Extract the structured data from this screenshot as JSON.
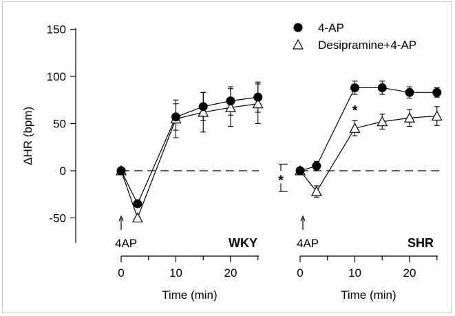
{
  "chart_data": {
    "type": "scatter",
    "ylabel": "ΔHR (bpm)",
    "ylim": [
      -75,
      150
    ],
    "yticks": [
      -50,
      0,
      50,
      100,
      150
    ],
    "xticks": [
      0,
      10,
      20
    ],
    "legend": {
      "placement": "top-right",
      "entries": [
        "4-AP",
        "Desipramine+4-AP"
      ]
    },
    "panels": [
      {
        "name": "WKY",
        "xlabel": "Time (min)",
        "arrow_label": "4AP",
        "series": [
          {
            "name": "4-AP",
            "marker": "filled-circle",
            "x": [
              0,
              3,
              10,
              15,
              20,
              25
            ],
            "y": [
              0,
              -35,
              57,
              68,
              74,
              78
            ],
            "err": [
              0,
              0,
              14,
              15,
              15,
              16
            ],
            "star": [
              false,
              true,
              false,
              false,
              false,
              true
            ]
          },
          {
            "name": "Desipramine+4-AP",
            "marker": "open-triangle",
            "x": [
              0,
              3,
              10,
              15,
              20,
              25
            ],
            "y": [
              0,
              -50,
              55,
              62,
              67,
              71
            ],
            "err": [
              0,
              0,
              20,
              21,
              20,
              21
            ],
            "star": [
              false,
              false,
              false,
              false,
              false,
              false
            ]
          }
        ]
      },
      {
        "name": "SHR",
        "xlabel": "Time (min)",
        "arrow_label": "4AP",
        "series": [
          {
            "name": "4-AP",
            "marker": "filled-circle",
            "x": [
              0,
              3,
              10,
              15,
              20,
              25
            ],
            "y": [
              0,
              5,
              88,
              88,
              83,
              83
            ],
            "err": [
              0,
              5,
              7,
              7,
              6,
              5
            ],
            "star": [
              false,
              false,
              false,
              false,
              false,
              true
            ]
          },
          {
            "name": "Desipramine+4-AP",
            "marker": "open-triangle",
            "x": [
              0,
              3,
              10,
              15,
              20,
              25
            ],
            "y": [
              0,
              -22,
              45,
              52,
              56,
              58
            ],
            "err": [
              0,
              6,
              8,
              8,
              9,
              10
            ],
            "star": [
              false,
              false,
              false,
              false,
              false,
              false
            ]
          }
        ],
        "annotations": [
          {
            "x": 10,
            "y": 65,
            "text": "*"
          }
        ],
        "baseline_bracket": {
          "y": [
            -22,
            7
          ],
          "text": "*"
        }
      }
    ]
  }
}
